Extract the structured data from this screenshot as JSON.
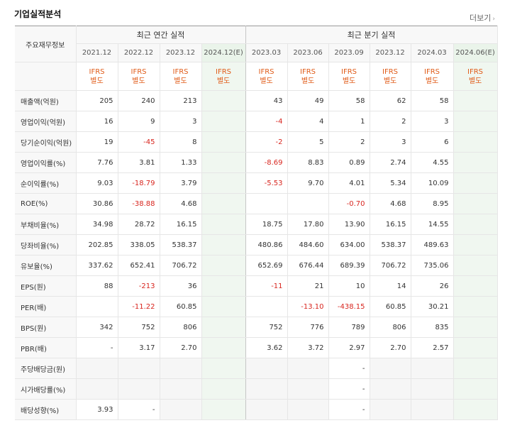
{
  "header": {
    "title": "기업실적분석",
    "more_label": "더보기",
    "more_arrow": "›"
  },
  "table": {
    "corner_label": "주요재무정보",
    "group_annual": "최근 연간 실적",
    "group_quarter": "최근 분기 실적",
    "periods": [
      "2021.12",
      "2022.12",
      "2023.12",
      "2024.12(E)",
      "2023.03",
      "2023.06",
      "2023.09",
      "2023.12",
      "2024.03",
      "2024.06(E)"
    ],
    "standard_line1": "IFRS",
    "standard_line2": "별도",
    "rows": [
      {
        "label": "매출액(억원)",
        "values": [
          "205",
          "240",
          "213",
          "",
          "43",
          "49",
          "58",
          "62",
          "58",
          ""
        ]
      },
      {
        "label": "영업이익(억원)",
        "values": [
          "16",
          "9",
          "3",
          "",
          "-4",
          "4",
          "1",
          "2",
          "3",
          ""
        ]
      },
      {
        "label": "당기순이익(억원)",
        "values": [
          "19",
          "-45",
          "8",
          "",
          "-2",
          "5",
          "2",
          "3",
          "6",
          ""
        ]
      },
      {
        "label": "영업이익률(%)",
        "values": [
          "7.76",
          "3.81",
          "1.33",
          "",
          "-8.69",
          "8.83",
          "0.89",
          "2.74",
          "4.55",
          ""
        ]
      },
      {
        "label": "순이익률(%)",
        "values": [
          "9.03",
          "-18.79",
          "3.79",
          "",
          "-5.53",
          "9.70",
          "4.01",
          "5.34",
          "10.09",
          ""
        ]
      },
      {
        "label": "ROE(%)",
        "values": [
          "30.86",
          "-38.88",
          "4.68",
          "",
          "",
          "",
          "-0.70",
          "4.68",
          "8.95",
          ""
        ]
      },
      {
        "label": "부채비율(%)",
        "values": [
          "34.98",
          "28.72",
          "16.15",
          "",
          "18.75",
          "17.80",
          "13.90",
          "16.15",
          "14.55",
          ""
        ]
      },
      {
        "label": "당좌비율(%)",
        "values": [
          "202.85",
          "338.05",
          "538.37",
          "",
          "480.86",
          "484.60",
          "634.00",
          "538.37",
          "489.63",
          ""
        ]
      },
      {
        "label": "유보율(%)",
        "values": [
          "337.62",
          "652.41",
          "706.72",
          "",
          "652.69",
          "676.44",
          "689.39",
          "706.72",
          "735.06",
          ""
        ]
      },
      {
        "label": "EPS(원)",
        "values": [
          "88",
          "-213",
          "36",
          "",
          "-11",
          "21",
          "10",
          "14",
          "26",
          ""
        ]
      },
      {
        "label": "PER(배)",
        "values": [
          "",
          "-11.22",
          "60.85",
          "",
          "",
          "-13.10",
          "-438.15",
          "60.85",
          "30.21",
          ""
        ]
      },
      {
        "label": "BPS(원)",
        "values": [
          "342",
          "752",
          "806",
          "",
          "752",
          "776",
          "789",
          "806",
          "835",
          ""
        ]
      },
      {
        "label": "PBR(배)",
        "values": [
          "-",
          "3.17",
          "2.70",
          "",
          "3.62",
          "3.72",
          "2.97",
          "2.70",
          "2.57",
          ""
        ]
      },
      {
        "label": "주당배당금(원)",
        "values": [
          "",
          "",
          "",
          "",
          "",
          "",
          "-",
          "",
          "",
          ""
        ]
      },
      {
        "label": "시가배당률(%)",
        "values": [
          "",
          "",
          "",
          "",
          "",
          "",
          "-",
          "",
          "",
          ""
        ]
      },
      {
        "label": "배당성향(%)",
        "values": [
          "3.93",
          "-",
          "",
          "",
          "",
          "",
          "-",
          "",
          "",
          ""
        ]
      }
    ]
  }
}
